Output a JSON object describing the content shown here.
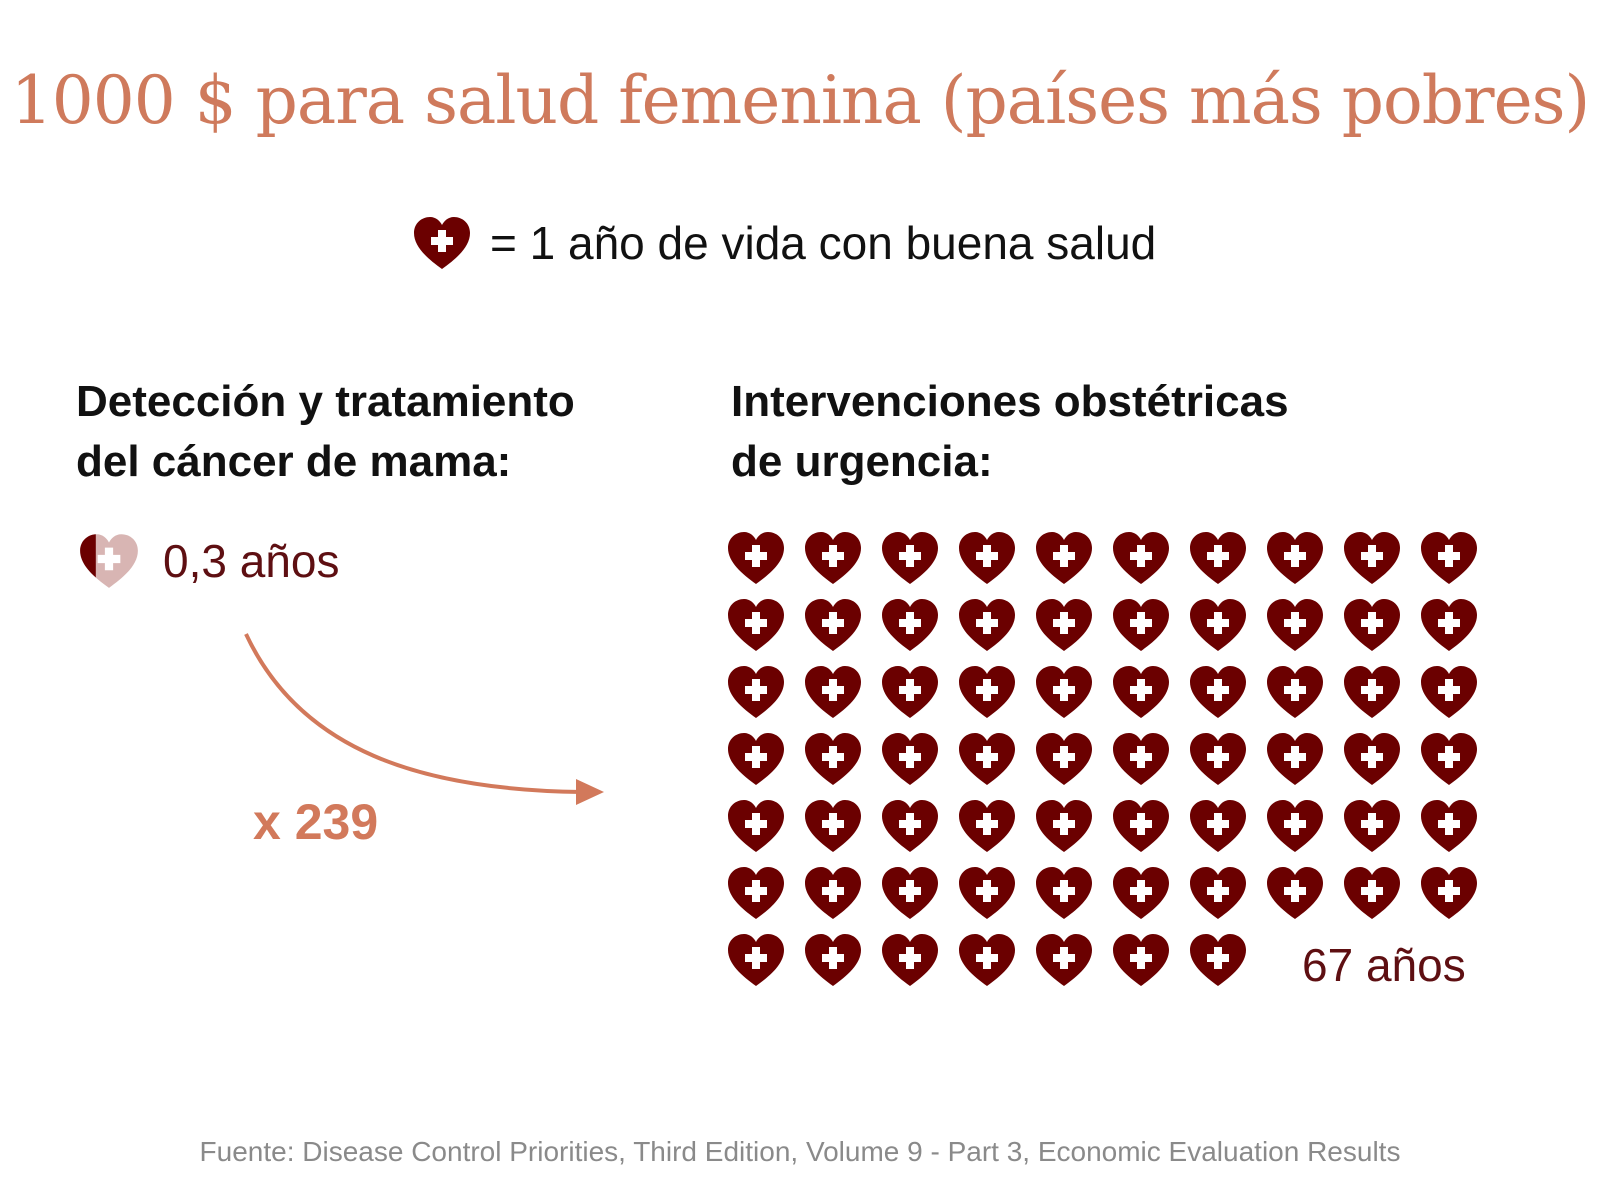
{
  "title": "1000 $ para salud femenina (países más pobres)",
  "legend": {
    "icon": "heart-cross-icon",
    "text": "= 1 año de vida con buena salud"
  },
  "left_panel": {
    "heading_line1": "Detección y tratamiento",
    "heading_line2": "del cáncer de mama:",
    "value_label": "0,3 años"
  },
  "multiplier_label": "x 239",
  "right_panel": {
    "heading_line1": "Intervenciones obstétricas",
    "heading_line2": "de urgencia:",
    "value_label": "67 años"
  },
  "source": "Fuente: Disease Control Priorities, Third Edition, Volume 9 - Part 3, Economic Evaluation Results",
  "colors": {
    "title": "#cf7a5c",
    "heart": "#6b0000",
    "heart_faded": "#d8b5b3",
    "accent": "#d2795b",
    "dark_red_text": "#5e0f12"
  },
  "chart_data": {
    "type": "pictogram",
    "unit": "1 año de vida con buena salud",
    "icons_per_row": 10,
    "series": [
      {
        "label": "Detección y tratamiento del cáncer de mama",
        "value": 0.3
      },
      {
        "label": "Intervenciones obstétricas de urgencia",
        "value": 67
      }
    ],
    "ratio": 239
  }
}
